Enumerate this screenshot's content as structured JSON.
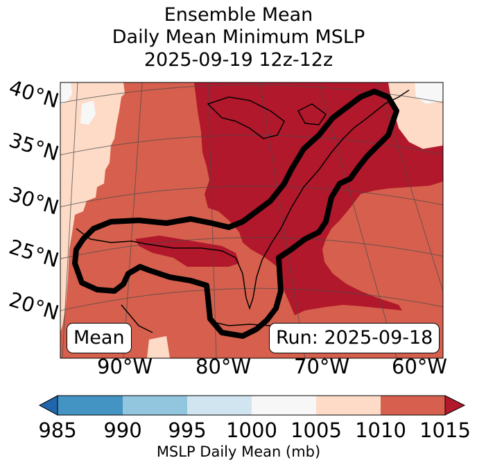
{
  "title": {
    "line1": "Ensemble Mean",
    "line2": "Daily Mean Minimum MSLP",
    "line3": "2025-09-19 12z-12z"
  },
  "map": {
    "lat_labels": [
      "40°N",
      "35°N",
      "30°N",
      "25°N",
      "20°N"
    ],
    "lon_labels": [
      "90°W",
      "80°W",
      "70°W",
      "60°W"
    ],
    "left_box": "Mean",
    "right_box": "Run: 2025-09-18",
    "fill_colors": {
      "1015+": "#b2182b",
      "1010-1015": "#d6604d",
      "1005-1010": "#fddbc7",
      "1000-1005": "#f7f7f7"
    },
    "contour_color": "#000000"
  },
  "colorbar": {
    "label": "MSLP Daily Mean (mb)",
    "ticks": [
      "985",
      "990",
      "995",
      "1000",
      "1005",
      "1010",
      "1015"
    ],
    "colors": [
      "#2166ac",
      "#4393c3",
      "#92c5de",
      "#d1e5f0",
      "#f7f7f7",
      "#fddbc7",
      "#d6604d",
      "#b2182b"
    ]
  }
}
